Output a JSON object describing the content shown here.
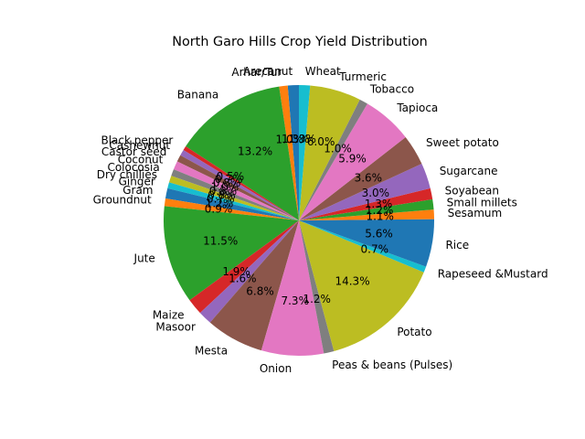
{
  "chart_data": {
    "type": "pie",
    "title": "North Garo Hills Crop Yield Distribution",
    "start_angle_deg": 90,
    "direction": "counterclockwise",
    "legend": "none",
    "slices": [
      {
        "label": "Arecanut",
        "value": 1.3,
        "pct_label": "1.3%",
        "color": "#1f77b4"
      },
      {
        "label": "Arhar/Tur",
        "value": 1.0,
        "pct_label": "1.0%",
        "color": "#ff7f0e"
      },
      {
        "label": "Banana",
        "value": 13.2,
        "pct_label": "13.2%",
        "color": "#2ca02c"
      },
      {
        "label": "Black pepper",
        "value": 0.5,
        "pct_label": "0.5%",
        "color": "#d62728"
      },
      {
        "label": "Cashewnut",
        "value": 0.7,
        "pct_label": "0.7%",
        "color": "#9467bd"
      },
      {
        "label": "Castor seed",
        "value": 0.8,
        "pct_label": "0.8%",
        "color": "#8c564b"
      },
      {
        "label": "Coconut",
        "value": 1.0,
        "pct_label": "1.0%",
        "color": "#e377c2"
      },
      {
        "label": "Colocosia",
        "value": 0.8,
        "pct_label": "0.8%",
        "color": "#7f7f7f"
      },
      {
        "label": "Dry chillies",
        "value": 0.8,
        "pct_label": "0.8%",
        "color": "#bcbd22"
      },
      {
        "label": "Ginger",
        "value": 0.7,
        "pct_label": "0.7%",
        "color": "#17becf"
      },
      {
        "label": "Gram",
        "value": 1.2,
        "pct_label": "1.2%",
        "color": "#1f77b4"
      },
      {
        "label": "Groundnut",
        "value": 0.9,
        "pct_label": "0.9%",
        "color": "#ff7f0e"
      },
      {
        "label": "Jute",
        "value": 11.5,
        "pct_label": "11.5%",
        "color": "#2ca02c"
      },
      {
        "label": "Maize",
        "value": 1.9,
        "pct_label": "1.9%",
        "color": "#d62728"
      },
      {
        "label": "Masoor",
        "value": 1.6,
        "pct_label": "1.6%",
        "color": "#9467bd"
      },
      {
        "label": "Mesta",
        "value": 6.8,
        "pct_label": "6.8%",
        "color": "#8c564b"
      },
      {
        "label": "Onion",
        "value": 7.3,
        "pct_label": "7.3%",
        "color": "#e377c2"
      },
      {
        "label": "Peas & beans (Pulses)",
        "value": 1.2,
        "pct_label": "1.2%",
        "color": "#7f7f7f"
      },
      {
        "label": "Potato",
        "value": 14.3,
        "pct_label": "14.3%",
        "color": "#bcbd22"
      },
      {
        "label": "Rapeseed &Mustard",
        "value": 0.7,
        "pct_label": "0.7%",
        "color": "#17becf"
      },
      {
        "label": "Rice",
        "value": 5.6,
        "pct_label": "5.6%",
        "color": "#1f77b4"
      },
      {
        "label": "Sesamum",
        "value": 1.1,
        "pct_label": "1.1%",
        "color": "#ff7f0e"
      },
      {
        "label": "Small millets",
        "value": 1.2,
        "pct_label": "1.2%",
        "color": "#2ca02c"
      },
      {
        "label": "Soyabean",
        "value": 1.3,
        "pct_label": "1.3%",
        "color": "#d62728"
      },
      {
        "label": "Sugarcane",
        "value": 3.0,
        "pct_label": "3.0%",
        "color": "#9467bd"
      },
      {
        "label": "Sweet potato",
        "value": 3.6,
        "pct_label": "3.6%",
        "color": "#8c564b"
      },
      {
        "label": "Tapioca",
        "value": 5.9,
        "pct_label": "5.9%",
        "color": "#e377c2"
      },
      {
        "label": "Tobacco",
        "value": 1.0,
        "pct_label": "1.0%",
        "color": "#7f7f7f"
      },
      {
        "label": "Turmeric",
        "value": 6.0,
        "pct_label": "6.0%",
        "color": "#bcbd22"
      },
      {
        "label": "Wheat",
        "value": 1.3,
        "pct_label": "1.3%",
        "color": "#17becf"
      }
    ]
  }
}
